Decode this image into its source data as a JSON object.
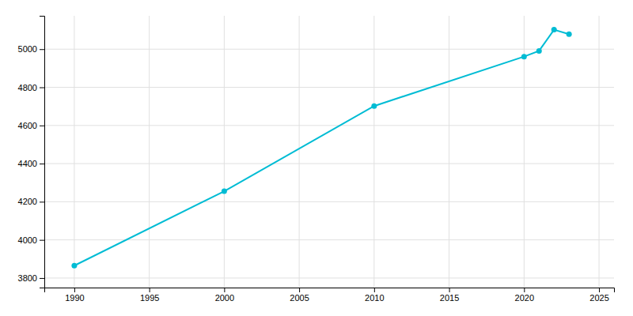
{
  "chart_data": {
    "type": "line",
    "x": [
      1990,
      2000,
      2010,
      2020,
      2021,
      2022,
      2023
    ],
    "values": [
      3865,
      4255,
      4702,
      4961,
      4991,
      5102,
      5079
    ],
    "color": "#00BCD4",
    "marker": "circle",
    "xlim": [
      1988,
      2026
    ],
    "ylim": [
      3750,
      5175
    ],
    "xticks": [
      1990,
      1995,
      2000,
      2005,
      2010,
      2015,
      2020,
      2025
    ],
    "yticks": [
      3800,
      4000,
      4200,
      4400,
      4600,
      4800,
      5000
    ],
    "grid": true
  }
}
